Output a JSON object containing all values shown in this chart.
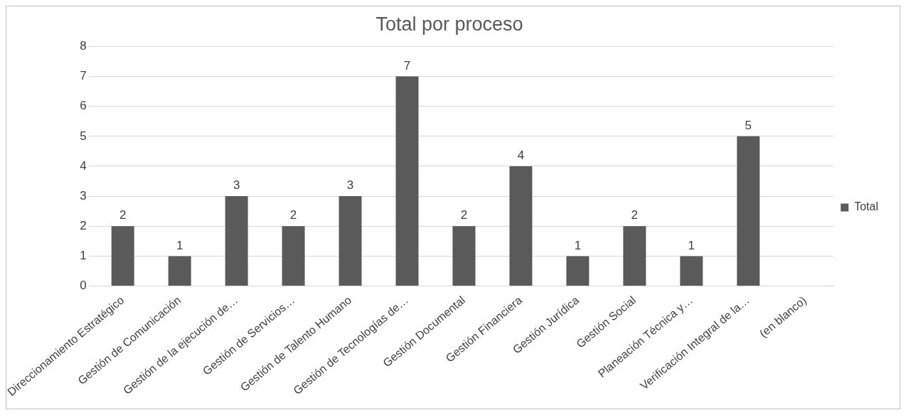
{
  "chart_data": {
    "type": "bar",
    "title": "Total por proceso",
    "categories": [
      "Direccionamiento Estratégico",
      "Gestión de Comunicación",
      "Gestión de la ejecución de…",
      "Gestión de Servicios…",
      "Gestión de Talento Humano",
      "Gestión de Tecnologías de…",
      "Gestión Documental",
      "Gestión Financiera",
      "Gestión Jurídica",
      "Gestión Social",
      "Planeación Técnica y…",
      "Verificación Integral de la…",
      "(en blanco)"
    ],
    "series": [
      {
        "name": "Total",
        "color": "#5a5a5a",
        "values": [
          2,
          1,
          3,
          2,
          3,
          7,
          2,
          4,
          1,
          2,
          1,
          5,
          null
        ]
      }
    ],
    "ylim": [
      0,
      8
    ],
    "yticks": [
      0,
      1,
      2,
      3,
      4,
      5,
      6,
      7,
      8
    ],
    "grid": "y",
    "legend": "right",
    "data_labels": true
  }
}
